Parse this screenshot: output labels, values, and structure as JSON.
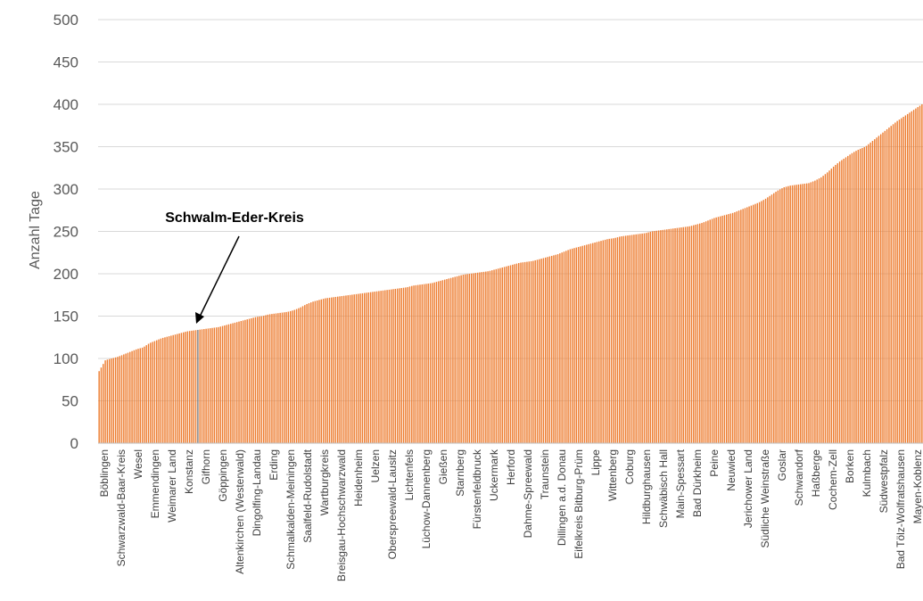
{
  "chart_data": {
    "type": "bar",
    "title": "",
    "xlabel": "",
    "ylabel": "Anzahl Tage",
    "ylim": [
      0,
      500
    ],
    "yticks": [
      0,
      50,
      100,
      150,
      200,
      250,
      300,
      350,
      400,
      450,
      500
    ],
    "grid": true,
    "legend": "none",
    "bar_color": "#ED7D31",
    "highlight_color": "#7F7F7F",
    "n_bars": 401,
    "values": [
      85,
      98,
      100,
      102,
      105,
      108,
      111,
      113,
      118,
      121,
      124,
      126,
      128,
      130,
      132,
      133,
      134,
      135,
      136,
      137,
      139,
      141,
      143,
      145,
      147,
      149,
      150,
      152,
      153,
      154,
      155,
      157,
      160,
      164,
      167,
      169,
      171,
      172,
      173,
      174,
      175,
      176,
      177,
      178,
      179,
      180,
      181,
      182,
      183,
      184,
      186,
      187,
      188,
      189,
      191,
      193,
      195,
      197,
      199,
      200,
      201,
      202,
      203,
      205,
      207,
      209,
      211,
      213,
      214,
      215,
      217,
      219,
      221,
      223,
      226,
      229,
      231,
      233,
      235,
      237,
      239,
      241,
      242,
      244,
      245,
      246,
      247,
      248,
      250,
      251,
      252,
      253,
      254,
      255,
      256,
      258,
      260,
      263,
      266,
      268,
      270,
      272,
      275,
      278,
      281,
      284,
      288,
      293,
      298,
      302,
      304,
      305,
      306,
      307,
      310,
      314,
      320,
      327,
      333,
      338,
      343,
      347,
      350,
      356,
      362,
      368,
      374,
      380,
      385,
      390,
      395,
      400
    ],
    "highlight": {
      "label": "Schwalm-Eder-Kreis",
      "value": 134
    },
    "tick_labels": [
      "Böblingen",
      "Schwarzwald-Baar-Kreis",
      "Wesel",
      "Emmendingen",
      "Weimarer Land",
      "Konstanz",
      "Gifhorn",
      "Göppingen",
      "Altenkirchen (Westerwald)",
      "Dingolfing-Landau",
      "Erding",
      "Schmalkalden-Meiningen",
      "Saalfeld-Rudolstadt",
      "Wartburgkreis",
      "Breisgau-Hochschwarzwald",
      "Heidenheim",
      "Uelzen",
      "Oberspreewald-Lausitz",
      "Lichtenfels",
      "Lüchow-Dannenberg",
      "Gießen",
      "Starnberg",
      "Fürstenfeldbruck",
      "Uckermark",
      "Herford",
      "Dahme-Spreewald",
      "Traunstein",
      "Dillingen a.d. Donau",
      "Eifelkreis Bitburg-Prüm",
      "Lippe",
      "Wittenberg",
      "Coburg",
      "Hildburghausen",
      "Schwäbisch Hall",
      "Main-Spessart",
      "Bad Dürkheim",
      "Peine",
      "Neuwied",
      "Jerichower Land",
      "Südliche Weinstraße",
      "Goslar",
      "Schwandorf",
      "Haßberge",
      "Cochem-Zell",
      "Borken",
      "Kulmbach",
      "Südwestpfalz",
      "Bad Tölz-Wolfratshausen",
      "Mayen-Koblenz"
    ],
    "annotation": {
      "text": "Schwalm-Eder-Kreis"
    }
  }
}
